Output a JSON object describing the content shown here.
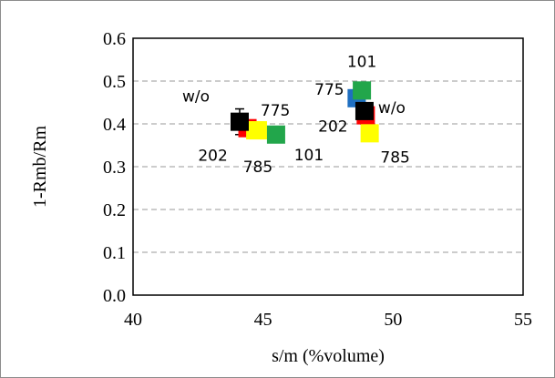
{
  "chart_data": {
    "type": "scatter",
    "xlabel": "s/m (%volume)",
    "ylabel": "1-Rmb/Rm",
    "xlim": [
      40,
      55
    ],
    "ylim": [
      0.0,
      0.6
    ],
    "x_ticks": [
      40,
      45,
      50,
      55
    ],
    "y_ticks": [
      "0.0",
      "0.1",
      "0.2",
      "0.3",
      "0.4",
      "0.5",
      "0.6"
    ],
    "grid": "horizontal dashed",
    "legend": "none",
    "points": [
      {
        "label": "w/o",
        "x": 44.1,
        "y": 0.405,
        "err": 0.03,
        "color": "#000000"
      },
      {
        "label": "202",
        "x": 44.4,
        "y": 0.39,
        "err": 0.0,
        "color": "#ff0000"
      },
      {
        "label": "785",
        "x": 44.8,
        "y": 0.385,
        "err": 0.0,
        "color": "#ffff00"
      },
      {
        "label": "775",
        "x": 44.7,
        "y": 0.385,
        "err": 0.0,
        "color": "#ffff00"
      },
      {
        "label": "101",
        "x": 45.5,
        "y": 0.375,
        "err": 0.0,
        "color": "#22a64b"
      },
      {
        "label": "775",
        "x": 48.6,
        "y": 0.46,
        "err": 0.0,
        "color": "#1f6fc1"
      },
      {
        "label": "101",
        "x": 48.8,
        "y": 0.478,
        "err": 0.0,
        "color": "#22a64b"
      },
      {
        "label": "w/o",
        "x": 48.9,
        "y": 0.43,
        "err": 0.03,
        "color": "#000000"
      },
      {
        "label": "202",
        "x": 48.95,
        "y": 0.42,
        "err": 0.0,
        "color": "#ff0000"
      },
      {
        "label": "785",
        "x": 49.1,
        "y": 0.378,
        "err": 0.0,
        "color": "#ffff00"
      }
    ]
  }
}
